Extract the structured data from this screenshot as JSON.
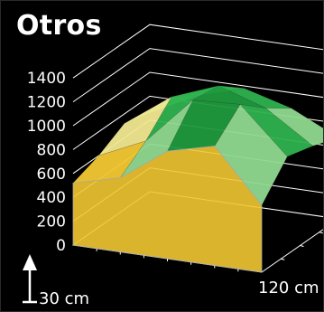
{
  "chart_data": {
    "type": "surface-3d",
    "title": "Otros",
    "zlabel": "",
    "z_ticks": [
      "0",
      "200",
      "400",
      "600",
      "800",
      "1000",
      "1200",
      "1400"
    ],
    "zlim": [
      0,
      1500
    ],
    "x_extent_label": "120 cm",
    "y_extent_label": "30 cm",
    "grid": true,
    "colors": {
      "band_0_600": "#f2c832",
      "band_600_800": "#f0e890",
      "band_800_1000": "#8fd88f",
      "band_1000_1200": "#2eb34f",
      "band_1200_1400": "#1f9a3e",
      "peak": "#c81818",
      "edge": "#aaaaaa"
    },
    "surface": {
      "cols": 5,
      "rows": 4,
      "z": [
        [
          660,
          860,
          980,
          870,
          680
        ],
        [
          720,
          1000,
          1150,
          1020,
          760
        ],
        [
          600,
          780,
          1180,
          1200,
          820
        ],
        [
          520,
          620,
          900,
          1000,
          560
        ]
      ]
    }
  }
}
